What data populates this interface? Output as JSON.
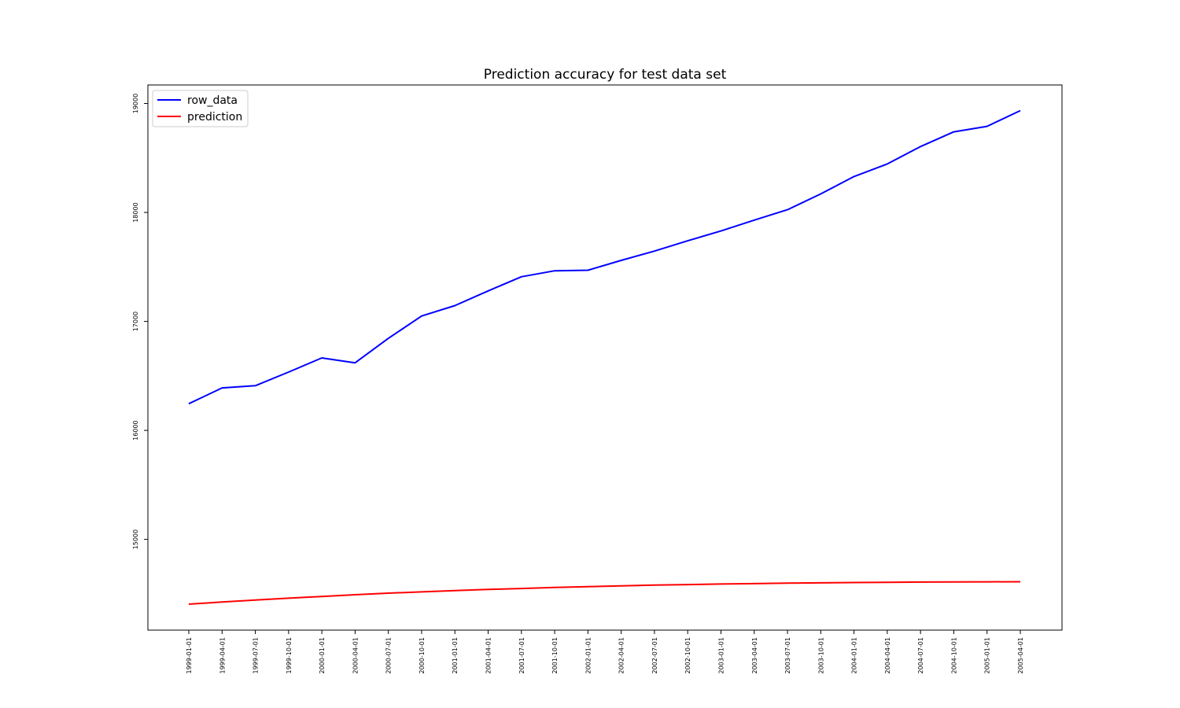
{
  "chart_data": {
    "type": "line",
    "title": "Prediction accuracy for test data set",
    "xlabel": "",
    "ylabel": "",
    "x": [
      "1999-01-01",
      "1999-04-01",
      "1999-07-01",
      "1999-10-01",
      "2000-01-01",
      "2000-04-01",
      "2000-07-01",
      "2000-10-01",
      "2001-01-01",
      "2001-04-01",
      "2001-07-01",
      "2001-10-01",
      "2002-01-01",
      "2002-04-01",
      "2002-07-01",
      "2002-10-01",
      "2003-01-01",
      "2003-04-01",
      "2003-07-01",
      "2003-10-01",
      "2004-01-01",
      "2004-04-01",
      "2004-07-01",
      "2004-10-01",
      "2005-01-01",
      "2005-04-01"
    ],
    "series": [
      {
        "name": "row_data",
        "color": "#0000ff",
        "values": [
          16245,
          16390,
          16410,
          16535,
          16665,
          16620,
          16845,
          17050,
          17145,
          17280,
          17410,
          17465,
          17470,
          17560,
          17645,
          17740,
          17830,
          17930,
          18025,
          18170,
          18330,
          18445,
          18605,
          18740,
          18790,
          18935
        ]
      },
      {
        "name": "prediction",
        "color": "#ff0000",
        "values": [
          14405,
          14425,
          14443,
          14460,
          14476,
          14492,
          14506,
          14518,
          14530,
          14540,
          14549,
          14558,
          14566,
          14573,
          14580,
          14585,
          14590,
          14594,
          14598,
          14601,
          14604,
          14606,
          14608,
          14609,
          14610,
          14611
        ]
      }
    ],
    "yticks": [
      15000,
      16000,
      17000,
      18000,
      19000
    ],
    "ylim": [
      14167,
      19170
    ],
    "grid": false,
    "legend_position": "top-left"
  }
}
